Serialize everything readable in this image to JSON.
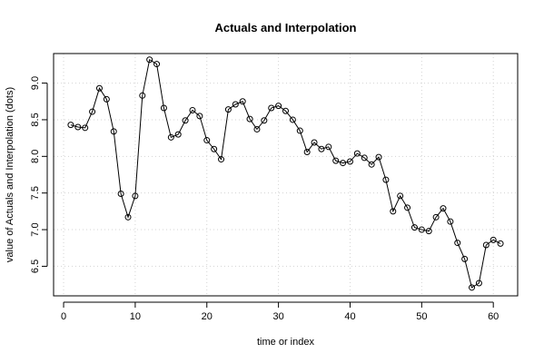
{
  "chart_data": {
    "type": "line",
    "title": "Actuals and Interpolation",
    "xlabel": "time or index",
    "ylabel": "value of Actuals and Interpolation (dots)",
    "xlim": [
      -1.4,
      63.4
    ],
    "ylim": [
      6.0965,
      9.4035
    ],
    "x_ticks": [
      0,
      10,
      20,
      30,
      40,
      50,
      60
    ],
    "y_ticks": [
      6.5,
      7.0,
      7.5,
      8.0,
      8.5,
      9.0
    ],
    "x_tick_labels": [
      "0",
      "10",
      "20",
      "30",
      "40",
      "50",
      "60"
    ],
    "y_tick_labels": [
      "6.5",
      "7.0",
      "7.5",
      "8.0",
      "8.5",
      "9.0"
    ],
    "grid": true,
    "series": [
      {
        "marker": "open-circle",
        "line": true,
        "color": "#000000",
        "x": [
          1,
          2,
          3,
          4,
          5,
          6,
          7,
          8,
          9,
          10,
          11,
          12,
          13,
          14,
          15,
          16,
          17,
          18,
          19,
          20,
          21,
          22,
          23,
          24,
          25,
          26,
          27,
          28,
          29,
          30,
          31,
          32,
          33,
          34,
          35,
          36,
          37,
          38,
          39,
          40,
          41,
          42,
          43,
          44,
          45,
          46,
          47,
          48,
          49,
          50,
          51,
          52,
          53,
          54,
          55,
          56,
          57,
          58,
          59,
          60,
          61
        ],
        "values": [
          8.43,
          8.4,
          8.39,
          8.61,
          8.93,
          8.78,
          8.34,
          7.49,
          7.17,
          7.46,
          8.83,
          9.32,
          9.26,
          8.66,
          8.26,
          8.3,
          8.49,
          8.63,
          8.55,
          8.22,
          8.1,
          7.96,
          8.64,
          8.71,
          8.75,
          8.51,
          8.37,
          8.49,
          8.66,
          8.69,
          8.62,
          8.5,
          8.35,
          8.06,
          8.19,
          8.1,
          8.13,
          7.94,
          7.91,
          7.93,
          8.04,
          7.98,
          7.89,
          7.99,
          7.68,
          7.25,
          7.46,
          7.3,
          7.03,
          7.0,
          6.98,
          7.17,
          7.29,
          7.11,
          6.82,
          6.6,
          6.21,
          6.27,
          6.79,
          6.86,
          6.81
        ]
      }
    ]
  }
}
